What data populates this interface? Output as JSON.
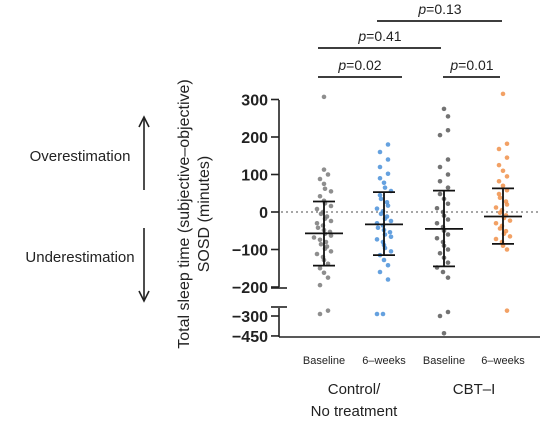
{
  "chart_data": {
    "type": "scatter",
    "ylabel_line1": "Total sleep time (subjective–objective)",
    "ylabel_line2": "SOSD (minutes)",
    "y_ticks": [
      "300",
      "200",
      "100",
      "0",
      "−100",
      "−200",
      "−300",
      "−450"
    ],
    "categories": [
      "Baseline",
      "6–weeks",
      "Baseline",
      "6–weeks"
    ],
    "groups": [
      "Control/",
      "No treatment",
      "CBT–I"
    ],
    "side_labels": {
      "top": "Overestimation",
      "bottom": "Underestimation"
    },
    "comparisons": [
      {
        "label": "=0.02",
        "prefix": "p"
      },
      {
        "label": "=0.01",
        "prefix": "p"
      },
      {
        "label": "=0.41",
        "prefix": "p"
      },
      {
        "label": "=0.13",
        "prefix": "p"
      }
    ],
    "series": [
      {
        "color": "#7a7a7a",
        "mean": -57,
        "upper": 28,
        "lower": -143,
        "values": [
          307,
          113,
          100,
          88,
          75,
          62,
          55,
          42,
          30,
          23,
          16,
          8,
          0,
          -5,
          -12,
          -18,
          -24,
          -30,
          -36,
          -42,
          -48,
          -53,
          -58,
          -63,
          -68,
          -74,
          -80,
          -86,
          -92,
          -98,
          -105,
          -112,
          -120,
          -128,
          -138,
          -150,
          -162,
          -175,
          -195,
          -260,
          -285
        ]
      },
      {
        "color": "#4a90d9",
        "mean": -33,
        "upper": 53,
        "lower": -115,
        "values": [
          180,
          160,
          140,
          120,
          102,
          90,
          78,
          65,
          56,
          45,
          35,
          26,
          17,
          9,
          2,
          -5,
          -12,
          -18,
          -24,
          -30,
          -36,
          -42,
          -48,
          -54,
          -60,
          -66,
          -73,
          -80,
          -88,
          -96,
          -105,
          -115,
          -128,
          -142,
          -160,
          -180,
          -285,
          -285
        ]
      },
      {
        "color": "#5a5a5a",
        "mean": -45,
        "upper": 57,
        "lower": -145,
        "values": [
          275,
          255,
          218,
          205,
          140,
          120,
          100,
          82,
          65,
          48,
          35,
          22,
          10,
          0,
          -10,
          -20,
          -30,
          -40,
          -50,
          -60,
          -70,
          -80,
          -90,
          -100,
          -110,
          -122,
          -135,
          -148,
          -160,
          -175,
          -270,
          -300,
          -430
        ]
      },
      {
        "color": "#f0914a",
        "mean": -12,
        "upper": 63,
        "lower": -85,
        "values": [
          315,
          182,
          168,
          145,
          125,
          110,
          95,
          82,
          70,
          58,
          48,
          38,
          28,
          20,
          12,
          5,
          -2,
          -9,
          -16,
          -23,
          -30,
          -37,
          -44,
          -51,
          -58,
          -65,
          -72,
          -80,
          -90,
          -100,
          -260
        ]
      }
    ],
    "ylim": [
      -450,
      300
    ],
    "grid": false
  }
}
